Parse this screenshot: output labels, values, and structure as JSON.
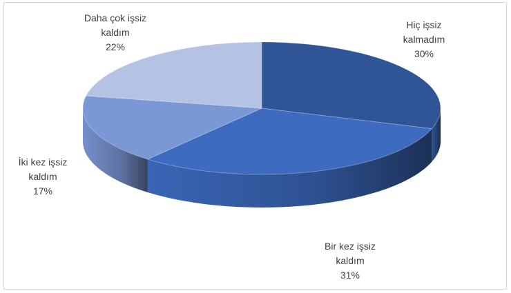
{
  "chart_data": {
    "type": "pie",
    "title": "",
    "three_d": true,
    "legend": "none",
    "slices": [
      {
        "label_lines": [
          "Hiç işsiz",
          "kalmadım"
        ],
        "label": "Hiç işsiz kalmadım",
        "value": 30,
        "value_label": "30%",
        "color": "#2f5597"
      },
      {
        "label_lines": [
          "Bir kez işsiz",
          "kaldım"
        ],
        "label": "Bir kez işsiz kaldım",
        "value": 31,
        "value_label": "31%",
        "color": "#3d6bc0"
      },
      {
        "label_lines": [
          "İki kez işsiz",
          "kaldım"
        ],
        "label": "İki kez işsiz kaldım",
        "value": 17,
        "value_label": "17%",
        "color": "#7a97d6"
      },
      {
        "label_lines": [
          "Daha çok işsiz",
          "kaldım"
        ],
        "label": "Daha çok işsiz kaldım",
        "value": 22,
        "value_label": "22%",
        "color": "#b4c2e3"
      }
    ]
  }
}
